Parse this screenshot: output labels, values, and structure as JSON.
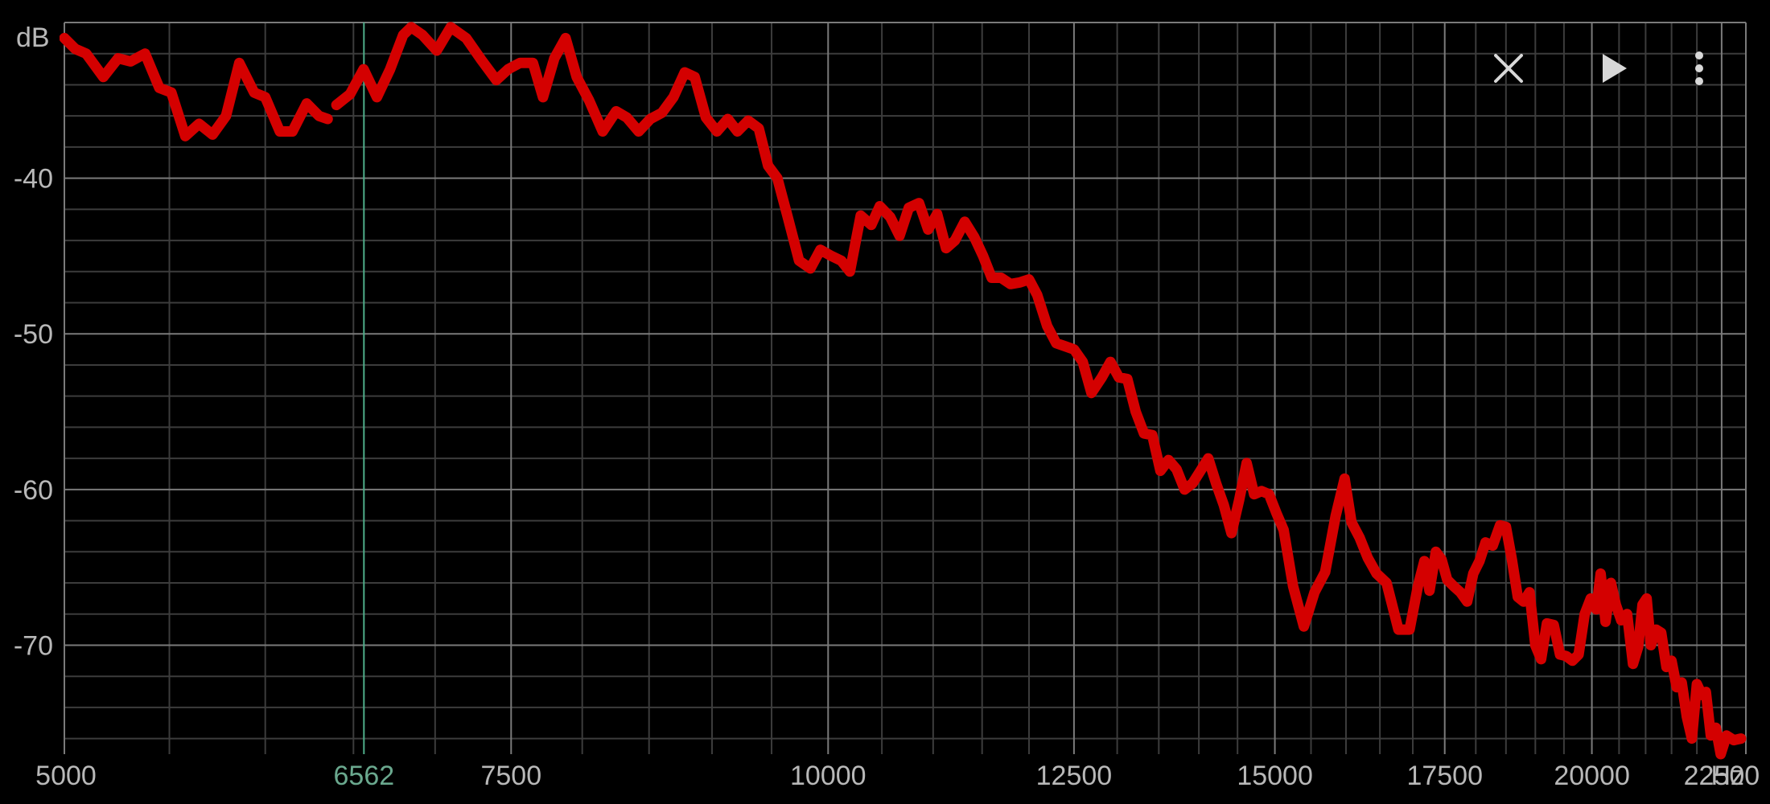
{
  "colors": {
    "background": "#000000",
    "trace": "#d40000",
    "marker": "#4fae8a",
    "marker_label": "#6aa88e",
    "grid_major": "#7a7a7a",
    "grid_minor": "#3c3c3c",
    "label": "#b8b8b8",
    "controls": "#d8d8d8"
  },
  "controls": {
    "close": "close-icon",
    "play": "play-icon",
    "menu": "more-vertical-icon"
  },
  "chart_data": {
    "type": "line",
    "title": "",
    "xlabel": "Hz",
    "ylabel": "dB",
    "x_scale": "log",
    "xlim": [
      5000,
      23000
    ],
    "ylim": [
      -77,
      -30
    ],
    "grid": true,
    "x_ticks": [
      5000,
      7500,
      10000,
      12500,
      15000,
      17500,
      20000,
      22500
    ],
    "x_tick_labels": [
      "5000",
      "7500",
      "10000",
      "12500",
      "15000",
      "17500",
      "20000",
      "22500"
    ],
    "y_ticks": [
      -40,
      -50,
      -60,
      -70
    ],
    "y_tick_labels": [
      "-40",
      "-50",
      "-60",
      "-70"
    ],
    "marker": {
      "x": 6562,
      "label": "6562"
    },
    "series": [
      {
        "segments": [
          [
            [
              5000,
              -31
            ],
            [
              5050,
              -31.7
            ],
            [
              5100,
              -32
            ],
            [
              5180,
              -33.5
            ],
            [
              5250,
              -32.3
            ],
            [
              5310,
              -32.5
            ],
            [
              5380,
              -32
            ],
            [
              5450,
              -34.2
            ],
            [
              5510,
              -34.5
            ],
            [
              5580,
              -37.3
            ],
            [
              5650,
              -36.5
            ],
            [
              5720,
              -37.2
            ],
            [
              5790,
              -36
            ],
            [
              5860,
              -32.6
            ],
            [
              5940,
              -34.5
            ],
            [
              6000,
              -34.8
            ],
            [
              6080,
              -37
            ],
            [
              6150,
              -37
            ],
            [
              6230,
              -35.2
            ],
            [
              6300,
              -36
            ],
            [
              6350,
              -36.2
            ]
          ],
          [
            [
              6400,
              -35.3
            ],
            [
              6480,
              -34.6
            ],
            [
              6560,
              -33
            ],
            [
              6640,
              -34.8
            ],
            [
              6720,
              -33
            ],
            [
              6800,
              -30.8
            ],
            [
              6850,
              -30.3
            ],
            [
              6920,
              -30.8
            ],
            [
              7010,
              -31.8
            ],
            [
              7100,
              -30.3
            ],
            [
              7200,
              -31
            ],
            [
              7300,
              -32.4
            ],
            [
              7400,
              -33.7
            ],
            [
              7480,
              -33
            ],
            [
              7560,
              -32.6
            ],
            [
              7650,
              -32.6
            ],
            [
              7720,
              -34.8
            ],
            [
              7800,
              -32.3
            ],
            [
              7880,
              -31
            ],
            [
              7960,
              -33.5
            ],
            [
              8050,
              -35
            ],
            [
              8150,
              -37
            ],
            [
              8250,
              -35.7
            ],
            [
              8330,
              -36.1
            ],
            [
              8420,
              -37
            ],
            [
              8510,
              -36.2
            ],
            [
              8600,
              -35.8
            ],
            [
              8690,
              -34.8
            ],
            [
              8780,
              -33.2
            ],
            [
              8860,
              -33.5
            ],
            [
              8950,
              -36.1
            ],
            [
              9040,
              -37
            ],
            [
              9130,
              -36.2
            ],
            [
              9210,
              -37
            ],
            [
              9300,
              -36.3
            ],
            [
              9390,
              -36.8
            ],
            [
              9470,
              -39.2
            ],
            [
              9550,
              -40
            ],
            [
              9640,
              -42.5
            ],
            [
              9740,
              -45.3
            ],
            [
              9840,
              -45.8
            ],
            [
              9930,
              -44.6
            ],
            [
              10030,
              -45
            ],
            [
              10120,
              -45.3
            ],
            [
              10200,
              -46
            ],
            [
              10300,
              -42.4
            ],
            [
              10400,
              -43
            ],
            [
              10480,
              -41.8
            ],
            [
              10580,
              -42.5
            ],
            [
              10670,
              -43.7
            ],
            [
              10760,
              -41.9
            ],
            [
              10860,
              -41.6
            ],
            [
              10950,
              -43.3
            ],
            [
              11040,
              -42.3
            ],
            [
              11130,
              -44.5
            ],
            [
              11220,
              -44
            ],
            [
              11320,
              -42.8
            ],
            [
              11420,
              -43.8
            ],
            [
              11510,
              -45
            ],
            [
              11600,
              -46.4
            ],
            [
              11700,
              -46.4
            ],
            [
              11800,
              -46.8
            ],
            [
              11900,
              -46.7
            ],
            [
              12000,
              -46.5
            ],
            [
              12090,
              -47.5
            ],
            [
              12200,
              -49.5
            ],
            [
              12300,
              -50.6
            ],
            [
              12400,
              -50.8
            ],
            [
              12500,
              -51
            ],
            [
              12600,
              -51.8
            ],
            [
              12700,
              -53.8
            ],
            [
              12820,
              -52.8
            ],
            [
              12920,
              -51.8
            ],
            [
              13020,
              -52.8
            ],
            [
              13120,
              -52.9
            ],
            [
              13220,
              -55
            ],
            [
              13320,
              -56.4
            ],
            [
              13420,
              -56.5
            ],
            [
              13520,
              -58.8
            ],
            [
              13620,
              -58.1
            ],
            [
              13720,
              -58.7
            ],
            [
              13820,
              -60
            ],
            [
              13920,
              -59.6
            ],
            [
              14020,
              -58.8
            ],
            [
              14120,
              -58
            ],
            [
              14220,
              -59.6
            ],
            [
              14320,
              -61
            ],
            [
              14420,
              -62.8
            ],
            [
              14520,
              -60.7
            ],
            [
              14620,
              -58.3
            ],
            [
              14720,
              -60.3
            ],
            [
              14820,
              -60.1
            ],
            [
              14920,
              -60.3
            ],
            [
              15020,
              -61.5
            ],
            [
              15120,
              -62.6
            ],
            [
              15250,
              -66.2
            ],
            [
              15400,
              -68.8
            ],
            [
              15550,
              -66.6
            ],
            [
              15700,
              -65.3
            ],
            [
              15850,
              -61.7
            ],
            [
              15980,
              -59.3
            ],
            [
              16080,
              -62.1
            ],
            [
              16200,
              -63.1
            ],
            [
              16320,
              -64.4
            ],
            [
              16450,
              -65.4
            ],
            [
              16600,
              -66
            ],
            [
              16780,
              -69
            ],
            [
              16950,
              -69
            ],
            [
              17080,
              -66.2
            ],
            [
              17180,
              -64.6
            ],
            [
              17260,
              -66.5
            ],
            [
              17360,
              -64
            ],
            [
              17450,
              -64.5
            ],
            [
              17540,
              -65.8
            ],
            [
              17640,
              -66.2
            ],
            [
              17750,
              -66.6
            ],
            [
              17860,
              -67.2
            ],
            [
              17960,
              -65.4
            ],
            [
              18060,
              -64.6
            ],
            [
              18160,
              -63.4
            ],
            [
              18280,
              -63.6
            ],
            [
              18400,
              -62.3
            ],
            [
              18500,
              -62.4
            ],
            [
              18600,
              -64.5
            ],
            [
              18700,
              -66.9
            ],
            [
              18800,
              -67.2
            ],
            [
              18900,
              -66.6
            ],
            [
              19000,
              -70
            ],
            [
              19100,
              -70.9
            ],
            [
              19200,
              -68.6
            ],
            [
              19320,
              -68.7
            ],
            [
              19430,
              -70.6
            ],
            [
              19540,
              -70.7
            ],
            [
              19650,
              -71
            ],
            [
              19760,
              -70.6
            ],
            [
              19870,
              -68
            ],
            [
              19980,
              -67
            ],
            [
              20080,
              -67.7
            ],
            [
              20160,
              -65.4
            ],
            [
              20250,
              -68.5
            ],
            [
              20350,
              -66
            ],
            [
              20440,
              -67.4
            ],
            [
              20540,
              -68.4
            ],
            [
              20650,
              -68
            ],
            [
              20760,
              -71.2
            ],
            [
              20860,
              -70.1
            ],
            [
              20940,
              -67.4
            ],
            [
              21020,
              -67
            ],
            [
              21100,
              -70
            ],
            [
              21200,
              -69
            ],
            [
              21300,
              -69.2
            ],
            [
              21400,
              -71.4
            ],
            [
              21500,
              -71
            ],
            [
              21600,
              -72.7
            ],
            [
              21700,
              -72.4
            ],
            [
              21800,
              -74.6
            ],
            [
              21900,
              -76
            ],
            [
              22000,
              -72.5
            ],
            [
              22100,
              -73.2
            ],
            [
              22180,
              -73
            ],
            [
              22280,
              -75.8
            ],
            [
              22380,
              -75.3
            ],
            [
              22480,
              -77
            ],
            [
              22600,
              -75.8
            ],
            [
              22750,
              -76.1
            ],
            [
              22900,
              -76
            ]
          ]
        ]
      }
    ]
  }
}
